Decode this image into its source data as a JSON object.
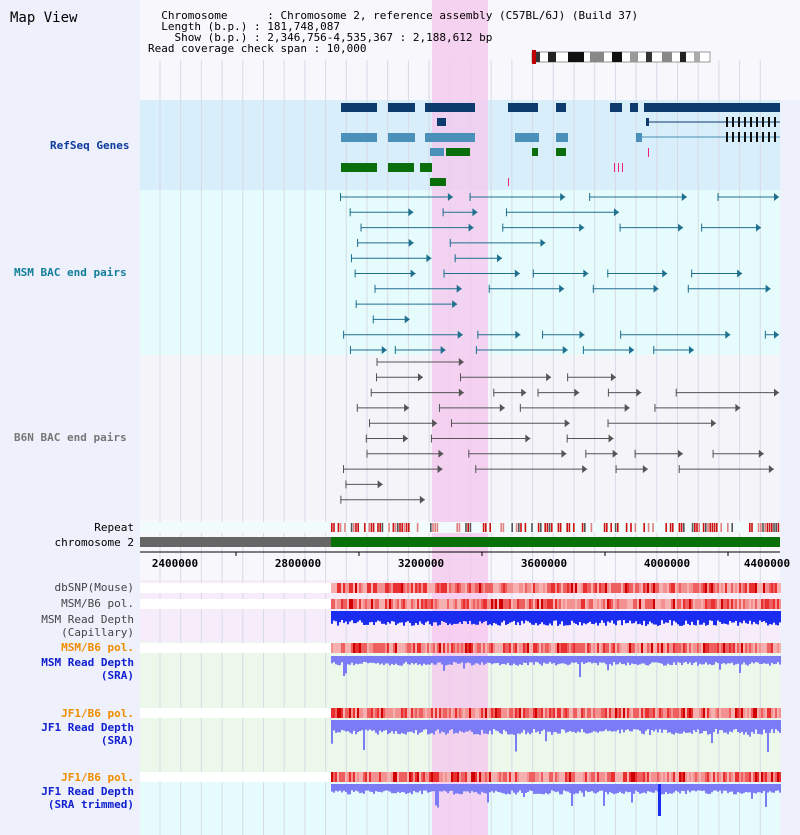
{
  "title": "Map View",
  "info": {
    "chromosome": "  Chromosome      : Chromosome 2, reference assembly (C57BL/6J) (Build 37)",
    "length": "  Length (b.p.) : 181,748,087",
    "show": "    Show (b.p.) : 2,346,756-4,535,367 : 2,188,612 bp",
    "span": "Read coverage check span : 10,000"
  },
  "tracks": {
    "refseq": "RefSeq Genes",
    "msm_bac": "MSM BAC end pairs",
    "b6n_bac": "B6N BAC end pairs",
    "repeat": "Repeat",
    "chromosome": "chromosome 2",
    "dbsnp": "dbSNP(Mouse)",
    "msm_b6_pol": "MSM/B6 pol.",
    "msm_depth_cap_1": "MSM Read Depth",
    "msm_depth_cap_2": "(Capillary)",
    "msm_b6_pol2": "MSM/B6 pol.",
    "msm_depth_sra_1": "MSM Read Depth",
    "msm_depth_sra_2": "(SRA)",
    "jf1_b6_pol": "JF1/B6 pol.",
    "jf1_depth_sra_1": "JF1 Read Depth",
    "jf1_depth_sra_2": "(SRA)",
    "jf1_b6_pol2": "JF1/B6 pol.",
    "jf1_depth_trim_1": "JF1 Read Depth",
    "jf1_depth_trim_2": "(SRA trimmed)"
  },
  "axis": {
    "ticks": [
      "2400000",
      "2800000",
      "3200000",
      "3600000",
      "4000000",
      "4400000"
    ]
  },
  "colors": {
    "refseq_blue": "#0d3b6e",
    "refseq_light": "#4a90b8",
    "refseq_green": "#0a6e0a",
    "msm_line": "#1f6f8f",
    "b6n_line": "#555555",
    "highlight": "#f6c6ee",
    "depth_blue": "#1a2cf0",
    "depth_light": "#7b7cf5",
    "pol_red": "#e02020",
    "chrom_green": "#077007",
    "chrom_gray": "#666666"
  }
}
